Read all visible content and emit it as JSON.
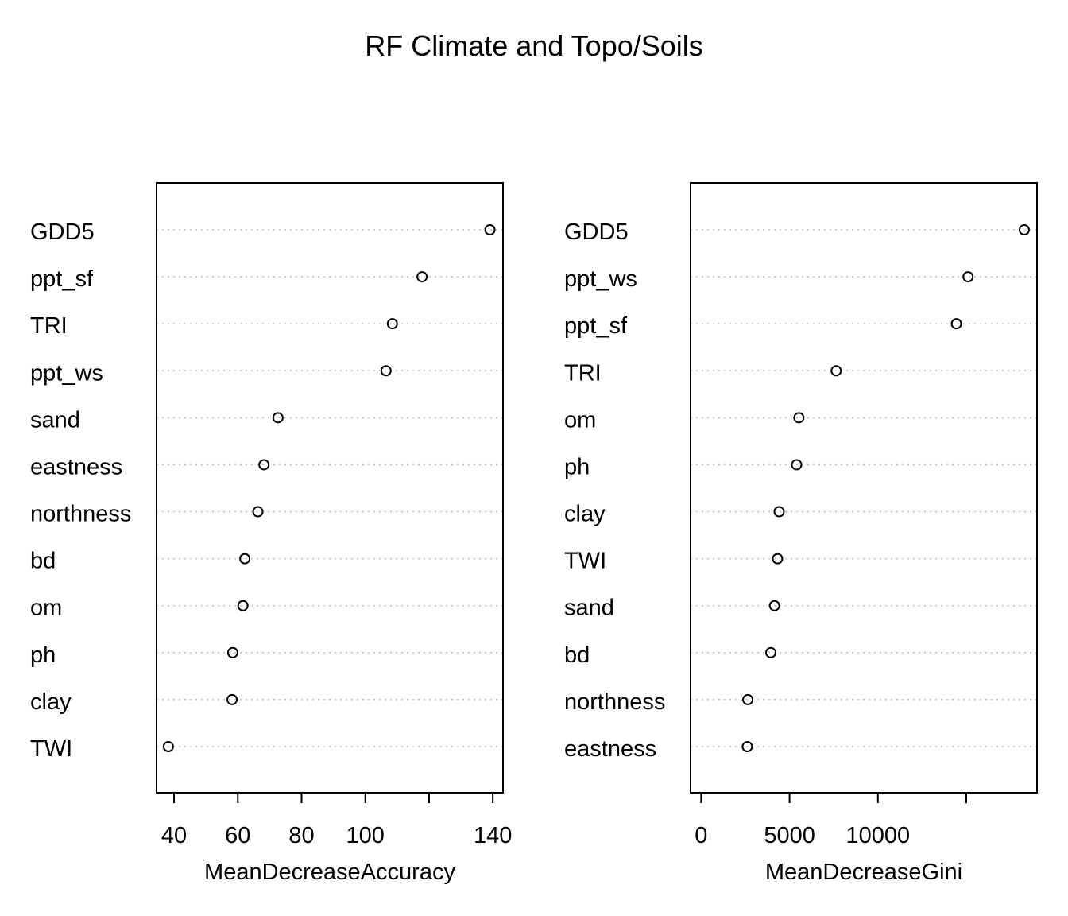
{
  "chart_data": {
    "title": "RF Climate and Topo/Soils",
    "panels": [
      {
        "type": "scatter",
        "xlabel": "MeanDecreaseAccuracy",
        "xlim": [
          34.5,
          143.2
        ],
        "xticks": [
          40,
          60,
          80,
          100,
          120,
          140
        ],
        "xtick_labels": [
          "40",
          "60",
          "80",
          "100",
          "",
          "140"
        ],
        "grid": "dotted",
        "categories": [
          "GDD5",
          "ppt_sf",
          "TRI",
          "ppt_ws",
          "sand",
          "eastness",
          "northness",
          "bd",
          "om",
          "ph",
          "clay",
          "TWI"
        ],
        "values": [
          139.1,
          117.8,
          108.5,
          106.5,
          72.6,
          68.2,
          66.3,
          62.2,
          61.6,
          58.4,
          58.2,
          38.2
        ]
      },
      {
        "type": "scatter",
        "xlabel": "MeanDecreaseGini",
        "xlim": [
          -600,
          19000
        ],
        "xticks": [
          0,
          5000,
          10000,
          15000
        ],
        "xtick_labels": [
          "0",
          "5000",
          "10000",
          ""
        ],
        "grid": "dotted",
        "categories": [
          "GDD5",
          "ppt_ws",
          "ppt_sf",
          "TRI",
          "om",
          "ph",
          "clay",
          "TWI",
          "sand",
          "bd",
          "northness",
          "eastness"
        ],
        "values": [
          18280,
          15100,
          14440,
          7640,
          5530,
          5400,
          4410,
          4320,
          4150,
          3940,
          2640,
          2610
        ]
      }
    ]
  }
}
